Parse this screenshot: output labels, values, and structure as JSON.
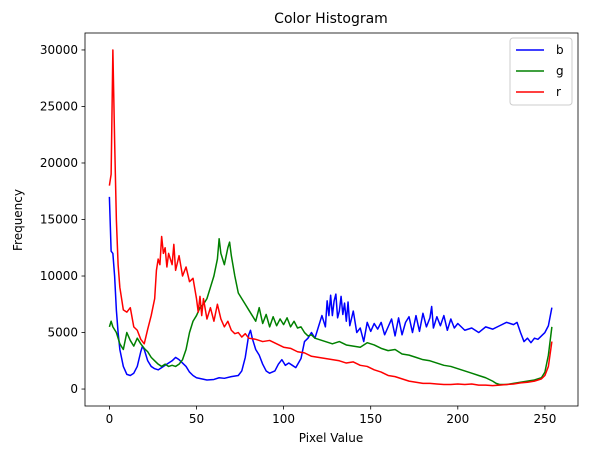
{
  "chart_data": {
    "type": "line",
    "title": "Color Histogram",
    "xlabel": "Pixel Value",
    "ylabel": "Frequency",
    "xlim": [
      -14,
      269
    ],
    "ylim": [
      -1500,
      31500
    ],
    "xticks": [
      0,
      50,
      100,
      150,
      200,
      250
    ],
    "yticks": [
      0,
      5000,
      10000,
      15000,
      20000,
      25000,
      30000
    ],
    "grid": false,
    "legend": "top-right",
    "series": [
      {
        "name": "b",
        "color": "#0000ff",
        "points": [
          [
            0,
            17000
          ],
          [
            1,
            12200
          ],
          [
            2,
            12000
          ],
          [
            3,
            10000
          ],
          [
            4,
            7000
          ],
          [
            5,
            5000
          ],
          [
            6,
            3500
          ],
          [
            8,
            2000
          ],
          [
            10,
            1300
          ],
          [
            12,
            1200
          ],
          [
            14,
            1400
          ],
          [
            16,
            2000
          ],
          [
            18,
            3300
          ],
          [
            19,
            3800
          ],
          [
            20,
            3500
          ],
          [
            22,
            2500
          ],
          [
            24,
            2000
          ],
          [
            26,
            1800
          ],
          [
            28,
            1700
          ],
          [
            30,
            1900
          ],
          [
            33,
            2200
          ],
          [
            36,
            2500
          ],
          [
            38,
            2800
          ],
          [
            40,
            2600
          ],
          [
            42,
            2300
          ],
          [
            44,
            2000
          ],
          [
            46,
            1500
          ],
          [
            48,
            1200
          ],
          [
            50,
            1000
          ],
          [
            53,
            900
          ],
          [
            56,
            800
          ],
          [
            60,
            850
          ],
          [
            63,
            1000
          ],
          [
            66,
            950
          ],
          [
            70,
            1100
          ],
          [
            74,
            1200
          ],
          [
            76,
            1600
          ],
          [
            78,
            2800
          ],
          [
            80,
            4800
          ],
          [
            81,
            5200
          ],
          [
            82,
            4500
          ],
          [
            84,
            3500
          ],
          [
            86,
            3000
          ],
          [
            88,
            2200
          ],
          [
            90,
            1600
          ],
          [
            92,
            1400
          ],
          [
            95,
            1600
          ],
          [
            97,
            2200
          ],
          [
            99,
            2600
          ],
          [
            101,
            2100
          ],
          [
            103,
            2300
          ],
          [
            105,
            2100
          ],
          [
            107,
            1900
          ],
          [
            110,
            2700
          ],
          [
            112,
            4200
          ],
          [
            114,
            4500
          ],
          [
            116,
            5000
          ],
          [
            118,
            4500
          ],
          [
            120,
            5500
          ],
          [
            122,
            6500
          ],
          [
            124,
            5500
          ],
          [
            125,
            7800
          ],
          [
            126,
            6500
          ],
          [
            127,
            8300
          ],
          [
            128,
            6500
          ],
          [
            129,
            7800
          ],
          [
            130,
            8400
          ],
          [
            131,
            6300
          ],
          [
            132,
            6900
          ],
          [
            133,
            8200
          ],
          [
            134,
            6600
          ],
          [
            135,
            7600
          ],
          [
            136,
            6000
          ],
          [
            137,
            7700
          ],
          [
            138,
            5600
          ],
          [
            140,
            6900
          ],
          [
            142,
            5000
          ],
          [
            144,
            5400
          ],
          [
            146,
            4200
          ],
          [
            148,
            5900
          ],
          [
            150,
            5100
          ],
          [
            152,
            5800
          ],
          [
            154,
            5300
          ],
          [
            156,
            5900
          ],
          [
            158,
            4800
          ],
          [
            160,
            5500
          ],
          [
            162,
            6200
          ],
          [
            164,
            4700
          ],
          [
            166,
            6300
          ],
          [
            168,
            4800
          ],
          [
            170,
            5900
          ],
          [
            172,
            6400
          ],
          [
            174,
            5000
          ],
          [
            176,
            6500
          ],
          [
            178,
            5100
          ],
          [
            180,
            6700
          ],
          [
            182,
            5500
          ],
          [
            184,
            6300
          ],
          [
            185,
            7300
          ],
          [
            186,
            5400
          ],
          [
            188,
            6400
          ],
          [
            190,
            5600
          ],
          [
            192,
            6500
          ],
          [
            194,
            5200
          ],
          [
            196,
            6200
          ],
          [
            198,
            5400
          ],
          [
            200,
            5800
          ],
          [
            204,
            5200
          ],
          [
            208,
            5400
          ],
          [
            212,
            5000
          ],
          [
            216,
            5500
          ],
          [
            220,
            5300
          ],
          [
            224,
            5600
          ],
          [
            228,
            5900
          ],
          [
            232,
            5700
          ],
          [
            234,
            5900
          ],
          [
            236,
            5000
          ],
          [
            238,
            4200
          ],
          [
            240,
            4500
          ],
          [
            242,
            4100
          ],
          [
            244,
            4500
          ],
          [
            246,
            4400
          ],
          [
            248,
            4700
          ],
          [
            250,
            5000
          ],
          [
            252,
            5600
          ],
          [
            254,
            7200
          ]
        ]
      },
      {
        "name": "g",
        "color": "#008000",
        "points": [
          [
            0,
            5500
          ],
          [
            1,
            6000
          ],
          [
            2,
            5500
          ],
          [
            4,
            5000
          ],
          [
            6,
            4000
          ],
          [
            8,
            3500
          ],
          [
            10,
            5000
          ],
          [
            12,
            4300
          ],
          [
            14,
            3800
          ],
          [
            16,
            4500
          ],
          [
            18,
            4000
          ],
          [
            20,
            3600
          ],
          [
            22,
            3300
          ],
          [
            24,
            2800
          ],
          [
            26,
            2500
          ],
          [
            28,
            2200
          ],
          [
            30,
            2000
          ],
          [
            32,
            2200
          ],
          [
            34,
            2000
          ],
          [
            36,
            2100
          ],
          [
            38,
            2000
          ],
          [
            40,
            2200
          ],
          [
            42,
            2600
          ],
          [
            44,
            3500
          ],
          [
            46,
            5000
          ],
          [
            48,
            6000
          ],
          [
            50,
            6500
          ],
          [
            52,
            7200
          ],
          [
            54,
            7500
          ],
          [
            56,
            8000
          ],
          [
            58,
            9000
          ],
          [
            60,
            10000
          ],
          [
            62,
            11500
          ],
          [
            63,
            13300
          ],
          [
            64,
            12000
          ],
          [
            66,
            11000
          ],
          [
            68,
            12500
          ],
          [
            69,
            13000
          ],
          [
            70,
            11800
          ],
          [
            72,
            10000
          ],
          [
            74,
            8500
          ],
          [
            76,
            8000
          ],
          [
            78,
            7500
          ],
          [
            80,
            7000
          ],
          [
            82,
            6500
          ],
          [
            84,
            6000
          ],
          [
            86,
            7200
          ],
          [
            88,
            5800
          ],
          [
            90,
            6600
          ],
          [
            92,
            5500
          ],
          [
            94,
            6400
          ],
          [
            96,
            5600
          ],
          [
            98,
            6200
          ],
          [
            100,
            5700
          ],
          [
            102,
            6300
          ],
          [
            104,
            5500
          ],
          [
            106,
            6000
          ],
          [
            108,
            5400
          ],
          [
            110,
            5500
          ],
          [
            112,
            5000
          ],
          [
            114,
            4700
          ],
          [
            116,
            4800
          ],
          [
            118,
            4500
          ],
          [
            120,
            4400
          ],
          [
            124,
            4200
          ],
          [
            128,
            4000
          ],
          [
            132,
            4200
          ],
          [
            136,
            3900
          ],
          [
            140,
            3800
          ],
          [
            144,
            3700
          ],
          [
            148,
            4100
          ],
          [
            152,
            3900
          ],
          [
            156,
            3600
          ],
          [
            160,
            3400
          ],
          [
            164,
            3500
          ],
          [
            168,
            3100
          ],
          [
            172,
            3000
          ],
          [
            176,
            2800
          ],
          [
            180,
            2600
          ],
          [
            184,
            2500
          ],
          [
            188,
            2300
          ],
          [
            192,
            2100
          ],
          [
            196,
            2000
          ],
          [
            200,
            1800
          ],
          [
            204,
            1600
          ],
          [
            208,
            1400
          ],
          [
            212,
            1200
          ],
          [
            216,
            1000
          ],
          [
            220,
            700
          ],
          [
            222,
            500
          ],
          [
            224,
            400
          ],
          [
            228,
            400
          ],
          [
            232,
            500
          ],
          [
            236,
            600
          ],
          [
            240,
            700
          ],
          [
            244,
            800
          ],
          [
            248,
            1000
          ],
          [
            250,
            1500
          ],
          [
            252,
            3000
          ],
          [
            254,
            5500
          ]
        ]
      },
      {
        "name": "r",
        "color": "#ff0000",
        "points": [
          [
            0,
            18000
          ],
          [
            1,
            19000
          ],
          [
            2,
            30000
          ],
          [
            3,
            22000
          ],
          [
            4,
            15000
          ],
          [
            5,
            11000
          ],
          [
            6,
            9000
          ],
          [
            8,
            7000
          ],
          [
            10,
            6800
          ],
          [
            12,
            7200
          ],
          [
            14,
            5500
          ],
          [
            16,
            5200
          ],
          [
            18,
            4400
          ],
          [
            20,
            4000
          ],
          [
            22,
            5300
          ],
          [
            24,
            6500
          ],
          [
            26,
            8000
          ],
          [
            27,
            10500
          ],
          [
            28,
            11500
          ],
          [
            29,
            11000
          ],
          [
            30,
            13500
          ],
          [
            31,
            12000
          ],
          [
            32,
            12500
          ],
          [
            33,
            10800
          ],
          [
            34,
            12000
          ],
          [
            36,
            11000
          ],
          [
            37,
            12800
          ],
          [
            38,
            10500
          ],
          [
            40,
            11800
          ],
          [
            42,
            10000
          ],
          [
            44,
            10800
          ],
          [
            46,
            9500
          ],
          [
            48,
            9800
          ],
          [
            50,
            8000
          ],
          [
            51,
            6800
          ],
          [
            52,
            8200
          ],
          [
            53,
            6500
          ],
          [
            54,
            8000
          ],
          [
            56,
            6200
          ],
          [
            58,
            7200
          ],
          [
            60,
            6000
          ],
          [
            62,
            7500
          ],
          [
            64,
            6200
          ],
          [
            66,
            5500
          ],
          [
            68,
            6000
          ],
          [
            70,
            5200
          ],
          [
            72,
            4900
          ],
          [
            74,
            5000
          ],
          [
            76,
            4600
          ],
          [
            78,
            4900
          ],
          [
            80,
            4500
          ],
          [
            84,
            4400
          ],
          [
            88,
            4200
          ],
          [
            92,
            4300
          ],
          [
            96,
            4000
          ],
          [
            100,
            3700
          ],
          [
            104,
            3600
          ],
          [
            108,
            3300
          ],
          [
            112,
            3200
          ],
          [
            116,
            2900
          ],
          [
            120,
            2800
          ],
          [
            124,
            2700
          ],
          [
            128,
            2600
          ],
          [
            132,
            2500
          ],
          [
            136,
            2300
          ],
          [
            140,
            2400
          ],
          [
            144,
            2100
          ],
          [
            148,
            2000
          ],
          [
            152,
            1700
          ],
          [
            156,
            1500
          ],
          [
            160,
            1200
          ],
          [
            164,
            1100
          ],
          [
            168,
            900
          ],
          [
            172,
            700
          ],
          [
            176,
            600
          ],
          [
            180,
            500
          ],
          [
            184,
            500
          ],
          [
            188,
            450
          ],
          [
            192,
            400
          ],
          [
            196,
            400
          ],
          [
            200,
            450
          ],
          [
            204,
            400
          ],
          [
            208,
            450
          ],
          [
            212,
            350
          ],
          [
            216,
            350
          ],
          [
            220,
            300
          ],
          [
            224,
            350
          ],
          [
            228,
            400
          ],
          [
            232,
            450
          ],
          [
            236,
            550
          ],
          [
            240,
            600
          ],
          [
            244,
            700
          ],
          [
            248,
            900
          ],
          [
            250,
            1200
          ],
          [
            252,
            2000
          ],
          [
            254,
            4200
          ]
        ]
      }
    ]
  }
}
